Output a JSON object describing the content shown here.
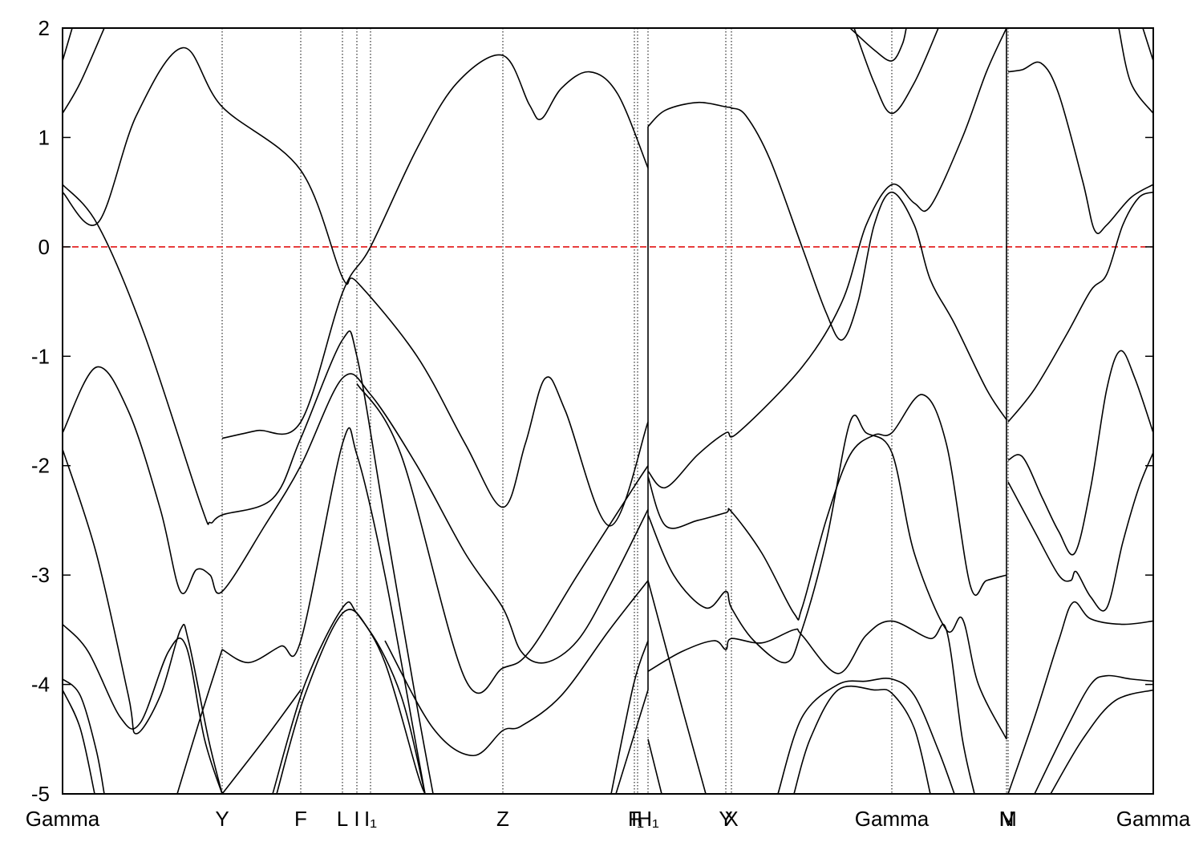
{
  "chart_data": {
    "type": "line",
    "line_color": "#000000",
    "grid_x": true,
    "xlim": [
      0,
      1360
    ],
    "ylim": [
      -5,
      2
    ],
    "xticks": [
      {
        "value": 0,
        "label": "Gamma"
      },
      {
        "value": 199,
        "label": "Y"
      },
      {
        "value": 297,
        "label": "F"
      },
      {
        "value": 349,
        "label": "L"
      },
      {
        "value": 367,
        "label": "I"
      },
      {
        "value": 384,
        "label": "I₁"
      },
      {
        "value": 549,
        "label": "Z"
      },
      {
        "value": 713,
        "label": "F"
      },
      {
        "value": 717,
        "label": "I₁"
      },
      {
        "value": 730,
        "label": "H₁"
      },
      {
        "value": 827,
        "label": "Y"
      },
      {
        "value": 834,
        "label": "X"
      },
      {
        "value": 1034,
        "label": "Gamma"
      },
      {
        "value": 1177,
        "label": "N"
      },
      {
        "value": 1179,
        "label": "M"
      },
      {
        "value": 1360,
        "label": "Gamma"
      }
    ],
    "yticks": [
      -5,
      -4,
      -3,
      -2,
      -1,
      0,
      1,
      2
    ],
    "hlines": [
      {
        "value": 0,
        "color": "#e00000",
        "style": "dashed"
      }
    ],
    "series": [
      {
        "x": [
          0,
          44,
          92,
          150,
          199,
          297,
          349,
          367,
          442,
          502,
          549,
          577,
          602,
          627,
          682,
          730
        ],
        "values": [
          0.5,
          0.22,
          1.2,
          1.82,
          1.28,
          0.7,
          -0.28,
          -0.32,
          -1.0,
          -1.8,
          -2.38,
          -1.8,
          -1.2,
          -1.5,
          -2.55,
          -1.6
        ]
      },
      {
        "x": [
          0,
          44,
          102,
          172,
          184,
          199,
          262,
          297,
          349,
          367,
          402,
          442,
          462
        ],
        "values": [
          0.57,
          0.2,
          -0.8,
          -2.35,
          -2.52,
          -2.45,
          -2.3,
          -1.75,
          -0.85,
          -1.0,
          -2.5,
          -4.2,
          -5
        ]
      },
      {
        "x": [
          0,
          42,
          82,
          122,
          147,
          167,
          184,
          199,
          252,
          297,
          349,
          384,
          442,
          502,
          549,
          572,
          602,
          642,
          682,
          730
        ],
        "values": [
          -1.7,
          -1.1,
          -1.5,
          -2.4,
          -3.15,
          -2.95,
          -3.0,
          -3.15,
          -2.55,
          -2.0,
          -1.2,
          -1.35,
          -2.0,
          -2.8,
          -3.3,
          -3.7,
          -3.8,
          -3.6,
          -3.1,
          -2.4
        ]
      },
      {
        "x": [
          0,
          42,
          82,
          92,
          122,
          147,
          157,
          182,
          199
        ],
        "values": [
          -1.85,
          -2.8,
          -4.1,
          -4.45,
          -4.1,
          -3.5,
          -3.6,
          -4.5,
          -5
        ]
      },
      {
        "x": [
          199,
          242,
          297,
          349,
          384,
          442,
          492,
          549,
          582,
          597,
          622,
          657,
          692,
          730
        ],
        "values": [
          -1.75,
          -1.68,
          -1.6,
          -0.42,
          0,
          0.9,
          1.5,
          1.75,
          1.3,
          1.17,
          1.45,
          1.6,
          1.4,
          0.72
        ]
      },
      {
        "x": [
          199,
          232,
          272,
          297,
          349,
          367,
          402,
          442,
          452
        ],
        "values": [
          -3.68,
          -3.8,
          -3.65,
          -3.6,
          -1.8,
          -1.9,
          -3.0,
          -4.6,
          -5
        ]
      },
      {
        "x": [
          367,
          422,
          502,
          549,
          582,
          642,
          712,
          730
        ],
        "values": [
          -1.25,
          -1.9,
          -3.95,
          -3.85,
          -3.7,
          -3.0,
          -2.2,
          -2.0
        ]
      },
      {
        "x": [
          262,
          302,
          349,
          367,
          402,
          442,
          452
        ],
        "values": [
          -5,
          -4.0,
          -3.3,
          -3.35,
          -3.8,
          -4.8,
          -5
        ]
      },
      {
        "x": [
          267,
          302,
          349,
          382,
          422,
          452
        ],
        "values": [
          -5,
          -4.1,
          -3.35,
          -3.5,
          -4.1,
          -5
        ]
      },
      {
        "x": [
          0,
          32,
          72,
          97,
          132,
          154,
          177,
          199
        ],
        "values": [
          -3.45,
          -3.7,
          -4.3,
          -4.35,
          -3.7,
          -3.65,
          -4.5,
          -5
        ]
      },
      {
        "x": [
          0,
          22,
          42,
          52
        ],
        "values": [
          -3.95,
          -4.1,
          -4.6,
          -5
        ]
      },
      {
        "x": [
          0,
          22,
          40
        ],
        "values": [
          -4.05,
          -4.4,
          -5
        ]
      },
      {
        "x": [
          143,
          172,
          199
        ],
        "values": [
          -5,
          -4.3,
          -3.68
        ]
      },
      {
        "x": [
          199,
          252,
          297
        ],
        "values": [
          -5,
          -4.5,
          -4.05
        ]
      },
      {
        "x": [
          402,
          462,
          512,
          549,
          572,
          622,
          682,
          730
        ],
        "values": [
          -3.6,
          -4.4,
          -4.65,
          -4.42,
          -4.38,
          -4.1,
          -3.5,
          -3.05
        ]
      },
      {
        "x": [
          0,
          22,
          52
        ],
        "values": [
          1.22,
          1.5,
          2
        ]
      },
      {
        "x": [
          0,
          12
        ],
        "values": [
          1.7,
          2
        ]
      },
      {
        "x": [
          684,
          712,
          730
        ],
        "values": [
          -5,
          -4.0,
          -3.6
        ]
      },
      {
        "x": [
          690,
          730
        ],
        "values": [
          -5,
          -4.05
        ]
      },
      {
        "x": [
          730,
          730
        ],
        "values": [
          -4.05,
          1.1
        ]
      },
      {
        "x": [
          730,
          752,
          792,
          827,
          834,
          852,
          882,
          922,
          952,
          972,
          992,
          1012,
          1034,
          1062,
          1082,
          1112,
          1152,
          1177
        ],
        "values": [
          1.1,
          1.25,
          1.32,
          1.28,
          1.27,
          1.2,
          0.8,
          0,
          -0.6,
          -0.85,
          -0.5,
          0.2,
          0.5,
          0.2,
          -0.3,
          -0.7,
          -1.3,
          -1.58
        ]
      },
      {
        "x": [
          730,
          752,
          792,
          827,
          842,
          922,
          972,
          1002,
          1034,
          1062,
          1082,
          1122,
          1152,
          1177
        ],
        "values": [
          -2.05,
          -2.2,
          -1.9,
          -1.7,
          -1.7,
          -1.1,
          -0.5,
          0.2,
          0.57,
          0.4,
          0.37,
          1.0,
          1.6,
          2
        ]
      },
      {
        "x": [
          730,
          752,
          792,
          827,
          834,
          872,
          912,
          922,
          952,
          982,
          1012,
          1034,
          1072,
          1102,
          1132,
          1152,
          1177
        ],
        "values": [
          -2.1,
          -2.55,
          -2.5,
          -2.43,
          -2.42,
          -2.8,
          -3.35,
          -3.3,
          -2.5,
          -1.9,
          -1.72,
          -1.7,
          -1.35,
          -1.8,
          -3.1,
          -3.05,
          -3.0
        ]
      },
      {
        "x": [
          730,
          762,
          802,
          827,
          834,
          862,
          902,
          922,
          952,
          982,
          1002,
          1034,
          1062,
          1102,
          1122,
          1142,
          1177
        ],
        "values": [
          -2.45,
          -3.0,
          -3.3,
          -3.15,
          -3.3,
          -3.6,
          -3.8,
          -3.5,
          -2.7,
          -1.6,
          -1.7,
          -1.88,
          -2.8,
          -3.5,
          -3.4,
          -4.0,
          -4.5
        ]
      },
      {
        "x": [
          730,
          772,
          812,
          827,
          834,
          872,
          912,
          922,
          967,
          1002,
          1034,
          1082,
          1102,
          1122,
          1137
        ],
        "values": [
          -3.88,
          -3.7,
          -3.6,
          -3.68,
          -3.58,
          -3.62,
          -3.5,
          -3.55,
          -3.9,
          -3.55,
          -3.42,
          -3.58,
          -3.5,
          -4.5,
          -5
        ]
      },
      {
        "x": [
          730,
          772,
          802
        ],
        "values": [
          -3.05,
          -4.2,
          -5
        ]
      },
      {
        "x": [
          730,
          747
        ],
        "values": [
          -4.5,
          -5
        ]
      },
      {
        "x": [
          892,
          922,
          967,
          1002,
          1034,
          1062,
          1092,
          1112
        ],
        "values": [
          -5,
          -4.3,
          -4.0,
          -3.97,
          -3.95,
          -4.1,
          -4.6,
          -5
        ]
      },
      {
        "x": [
          912,
          932,
          967,
          1012,
          1034,
          1062,
          1082
        ],
        "values": [
          -5,
          -4.5,
          -4.05,
          -4.05,
          -4.08,
          -4.4,
          -5
        ]
      },
      {
        "x": [
          982,
          1012,
          1034,
          1047,
          1052
        ],
        "values": [
          2,
          1.8,
          1.7,
          1.85,
          2
        ]
      },
      {
        "x": [
          987,
          1012,
          1034,
          1062,
          1092
        ],
        "values": [
          2,
          1.5,
          1.22,
          1.5,
          2
        ]
      },
      {
        "x": [
          1177,
          1177
        ],
        "values": [
          -4.5,
          2
        ]
      },
      {
        "x": [
          1179,
          1197,
          1220,
          1242,
          1272,
          1287,
          1302,
          1332,
          1360
        ],
        "values": [
          1.6,
          1.62,
          1.68,
          1.4,
          0.6,
          0.15,
          0.2,
          0.45,
          0.57
        ]
      },
      {
        "x": [
          1179,
          1197,
          1222,
          1242,
          1262,
          1282,
          1302,
          1319,
          1337,
          1360
        ],
        "values": [
          -1.95,
          -1.92,
          -2.3,
          -2.6,
          -2.8,
          -2.2,
          -1.3,
          -0.95,
          -1.2,
          -1.7
        ]
      },
      {
        "x": [
          1179,
          1212,
          1242,
          1257,
          1264,
          1282,
          1302,
          1322,
          1342,
          1360
        ],
        "values": [
          -2.15,
          -2.6,
          -3.0,
          -3.05,
          -2.97,
          -3.2,
          -3.3,
          -2.7,
          -2.2,
          -1.88
        ]
      },
      {
        "x": [
          1179,
          1212,
          1252,
          1282,
          1302,
          1322,
          1342,
          1360
        ],
        "values": [
          -1.6,
          -1.3,
          -0.8,
          -0.4,
          -0.25,
          0.2,
          0.45,
          0.5
        ]
      },
      {
        "x": [
          1179,
          1212,
          1242,
          1260,
          1282,
          1322,
          1360
        ],
        "values": [
          -5,
          -4.3,
          -3.6,
          -3.25,
          -3.4,
          -3.45,
          -3.42
        ]
      },
      {
        "x": [
          1212,
          1252,
          1282,
          1302,
          1332,
          1360
        ],
        "values": [
          -5,
          -4.4,
          -4.0,
          -3.92,
          -3.95,
          -3.97
        ]
      },
      {
        "x": [
          1232,
          1272,
          1312,
          1360
        ],
        "values": [
          -5,
          -4.5,
          -4.15,
          -4.05
        ]
      },
      {
        "x": [
          1317,
          1332,
          1360
        ],
        "values": [
          2,
          1.5,
          1.22
        ]
      },
      {
        "x": [
          1347,
          1360
        ],
        "values": [
          2,
          1.7
        ]
      }
    ]
  }
}
